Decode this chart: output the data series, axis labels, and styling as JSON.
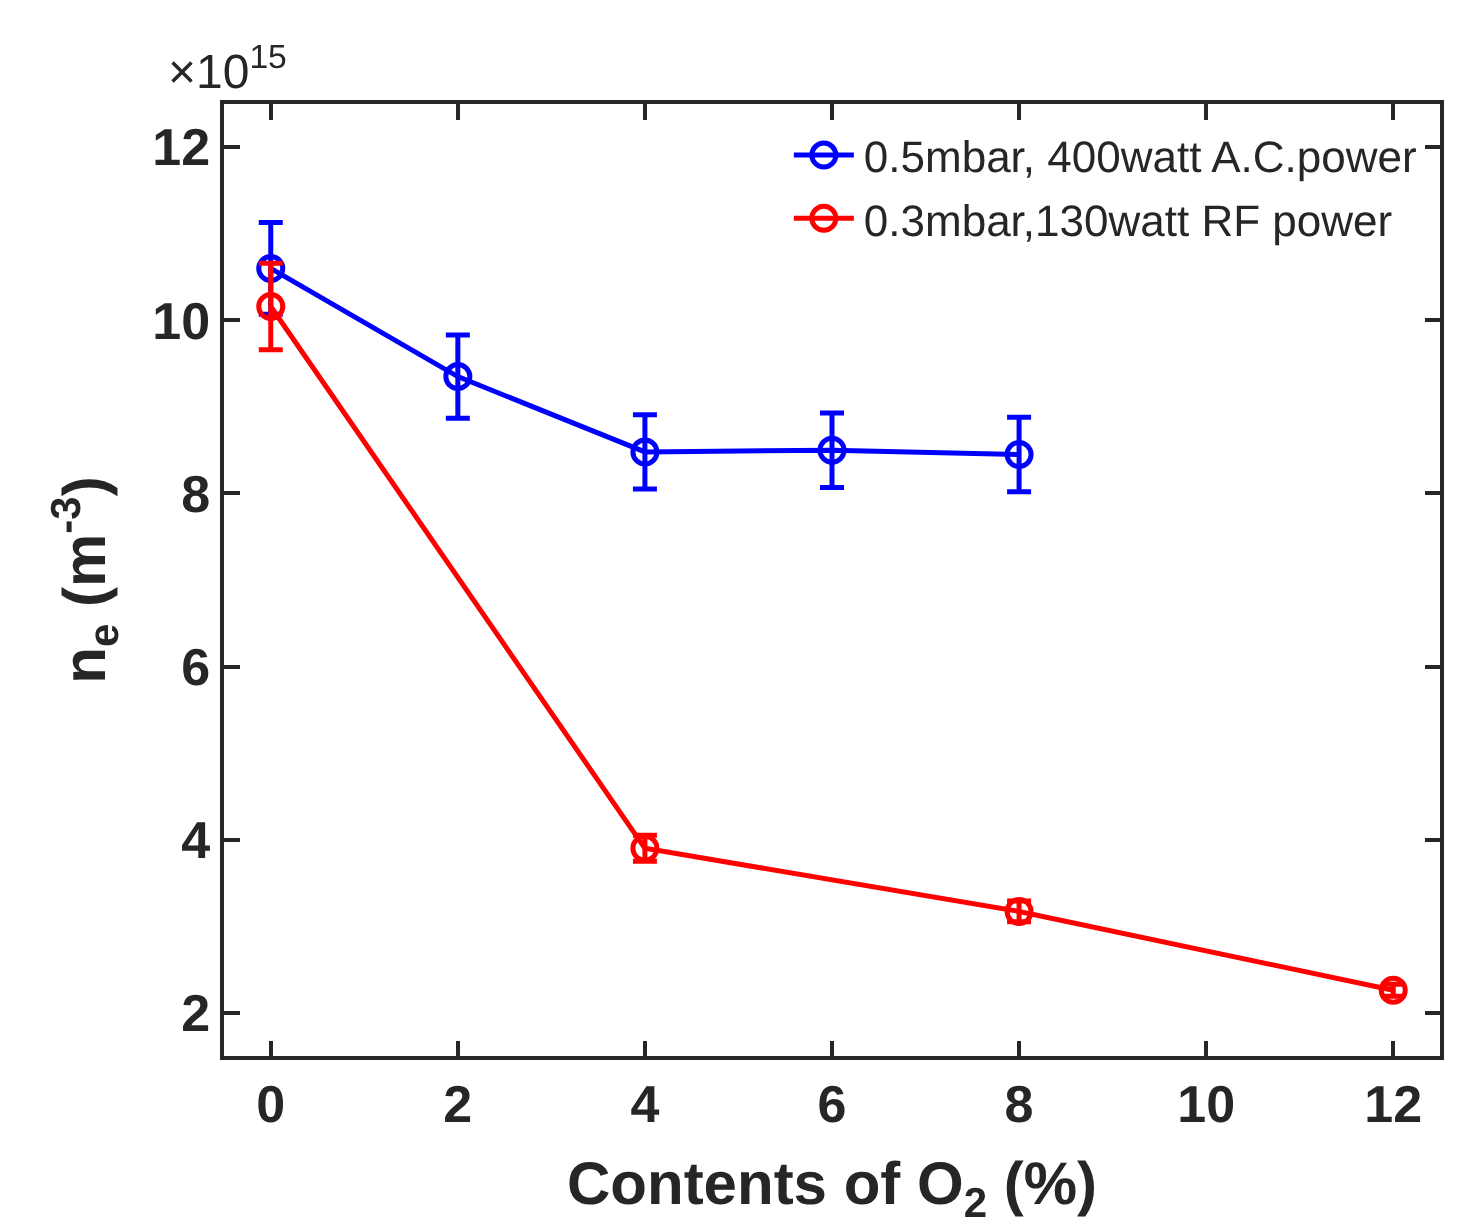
{
  "chart_data": {
    "type": "line",
    "xlabel": "Contents of O$_{2}$ (%)",
    "ylabel": "n$_{e}$ (m$^{-3}$)",
    "annotations": [
      "×10$^{15}$"
    ],
    "series": [
      {
        "name": "0.5mbar, 400watt A.C.power",
        "color": "#0000ff",
        "x": [
          0,
          2,
          4,
          6,
          8
        ],
        "values": [
          10.6,
          9.35,
          8.48,
          8.5,
          8.45
        ],
        "errors": [
          0.53,
          0.48,
          0.43,
          0.43,
          0.43
        ]
      },
      {
        "name": "0.3mbar,130watt RF power",
        "color": "#ff0000",
        "x": [
          0,
          4,
          8,
          12
        ],
        "values": [
          10.16,
          3.9,
          3.17,
          2.26
        ],
        "errors": [
          0.5,
          0.15,
          0.12,
          0.07
        ]
      }
    ],
    "xlim": [
      -0.5,
      12.5
    ],
    "xticks": [
      0,
      2,
      4,
      6,
      8,
      10,
      12
    ],
    "ylim": [
      1.5,
      12.5
    ],
    "yticks": [
      2,
      4,
      6,
      8,
      10,
      12
    ],
    "grid": false,
    "legend": "top right",
    "marker": "circle",
    "line_style": "solid"
  }
}
